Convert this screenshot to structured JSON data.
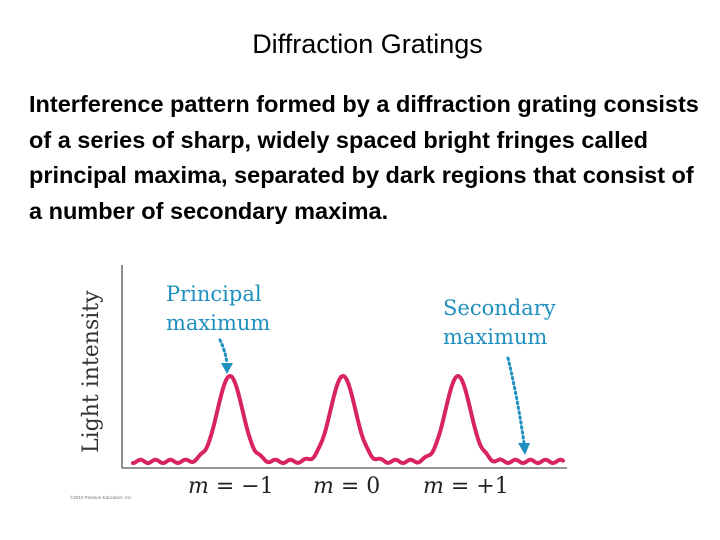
{
  "slide": {
    "title": "Diffraction Gratings",
    "body": "Interference pattern formed by a diffraction grating consists of a series of sharp, widely spaced bright fringes called principal maxima, separated by dark regions that consist of a number of secondary maxima."
  },
  "figure": {
    "y_axis_label": "Light intensity",
    "annotations": {
      "principal": [
        "Principal",
        "maximum"
      ],
      "secondary": [
        "Secondary",
        "maximum"
      ]
    },
    "order_labels": [
      {
        "m": "m",
        "eq": " = ",
        "val": "−1"
      },
      {
        "m": "m",
        "eq": " = ",
        "val": "0"
      },
      {
        "m": "m",
        "eq": " = ",
        "val": "+1"
      }
    ],
    "credit": "©2010 Pearson Education, Inc.",
    "colors": {
      "curve": "#d8245f",
      "annotation": "#1f8fbf",
      "axis": "#555555"
    }
  }
}
